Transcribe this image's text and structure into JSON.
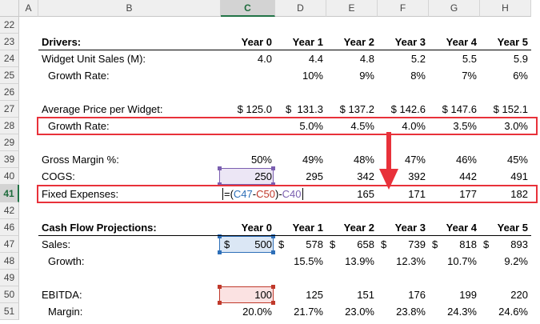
{
  "columns": [
    "A",
    "B",
    "C",
    "D",
    "E",
    "F",
    "G",
    "H"
  ],
  "selected_column": "C",
  "row_numbers": [
    "22",
    "23",
    "24",
    "25",
    "26",
    "27",
    "28",
    "29",
    "39",
    "40",
    "41",
    "42",
    "46",
    "47",
    "48",
    "49",
    "50",
    "51"
  ],
  "selected_row": "41",
  "headers": {
    "drivers": "Drivers:",
    "cash_flow": "Cash Flow Projections:",
    "years": [
      "Year 0",
      "Year 1",
      "Year 2",
      "Year 3",
      "Year 4",
      "Year 5"
    ]
  },
  "rows": {
    "widget_sales": {
      "label": "Widget Unit Sales (M):",
      "values": [
        "4.0",
        "4.4",
        "4.8",
        "5.2",
        "5.5",
        "5.9"
      ]
    },
    "widget_growth": {
      "label": "Growth Rate:",
      "values": [
        "",
        "10%",
        "9%",
        "8%",
        "7%",
        "6%"
      ]
    },
    "avg_price": {
      "label": "Average Price per Widget:",
      "values": [
        "$ 125.0",
        "$  131.3",
        "$ 137.2",
        "$ 142.6",
        "$ 147.6",
        "$ 152.1"
      ]
    },
    "price_growth": {
      "label": "Growth Rate:",
      "values": [
        "",
        "5.0%",
        "4.5%",
        "4.0%",
        "3.5%",
        "3.0%"
      ]
    },
    "gross_margin": {
      "label": "Gross Margin %:",
      "values": [
        "50%",
        "49%",
        "48%",
        "47%",
        "46%",
        "45%"
      ]
    },
    "cogs": {
      "label": "COGS:",
      "values": [
        "250",
        "295",
        "342",
        "392",
        "442",
        "491"
      ]
    },
    "fixed_expenses": {
      "label": "Fixed Expenses:",
      "values": [
        "",
        "",
        "165",
        "171",
        "177",
        "182"
      ]
    },
    "sales": {
      "label": "Sales:",
      "dollar": "$",
      "values": [
        "500",
        "578",
        "658",
        "739",
        "818",
        "893"
      ]
    },
    "sales_growth": {
      "label": "Growth:",
      "values": [
        "",
        "15.5%",
        "13.9%",
        "12.3%",
        "10.7%",
        "9.2%"
      ]
    },
    "ebitda": {
      "label": "EBITDA:",
      "values": [
        "100",
        "125",
        "151",
        "176",
        "199",
        "220"
      ]
    },
    "margin": {
      "label": "Margin:",
      "values": [
        "20.0%",
        "21.7%",
        "23.0%",
        "23.8%",
        "24.3%",
        "24.6%"
      ]
    }
  },
  "formula": {
    "open": "=(",
    "ref1": "C47",
    "minus1": "-",
    "ref2": "C50",
    "close": ")-",
    "ref3": "C40"
  },
  "colors": {
    "highlight_box": "#e8313a",
    "ref_blue": "#2e6fb8",
    "ref_red": "#c0392b",
    "ref_purple": "#7b5fb0"
  }
}
